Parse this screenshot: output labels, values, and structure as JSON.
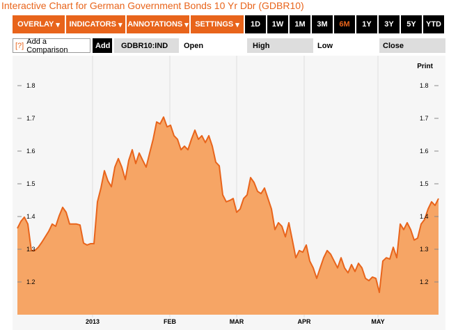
{
  "header": {
    "title": "Interactive Chart for German Government Bonds 10 Yr Dbr (GDBR10)"
  },
  "toolbar": {
    "menus": [
      "OVERLAY",
      "INDICATORS",
      "ANNOTATIONS",
      "SETTINGS"
    ],
    "ranges": [
      "1D",
      "1W",
      "1M",
      "3M",
      "6M",
      "1Y",
      "3Y",
      "5Y",
      "YTD"
    ],
    "selected_range": 4
  },
  "comparison": {
    "help": "[?]",
    "placeholder": "Add a Comparison",
    "button": "Add",
    "symbol": "GDBR10:IND",
    "fields": [
      "Open",
      "High",
      "Low",
      "Close"
    ]
  },
  "chart_data": {
    "type": "area",
    "print_label": "Print",
    "color": "#e8641b",
    "fill": "#f6a565",
    "values": [
      1.364,
      1.385,
      1.398,
      1.377,
      1.296,
      1.296,
      1.306,
      1.321,
      1.338,
      1.355,
      1.377,
      1.37,
      1.402,
      1.428,
      1.413,
      1.377,
      1.377,
      1.377,
      1.374,
      1.319,
      1.313,
      1.317,
      1.317,
      1.445,
      1.487,
      1.54,
      1.509,
      1.491,
      1.551,
      1.577,
      1.551,
      1.513,
      1.572,
      1.604,
      1.562,
      1.594,
      1.572,
      1.551,
      1.594,
      1.636,
      1.689,
      1.683,
      1.704,
      1.674,
      1.679,
      1.647,
      1.636,
      1.604,
      1.615,
      1.604,
      1.636,
      1.664,
      1.636,
      1.647,
      1.626,
      1.647,
      1.615,
      1.566,
      1.555,
      1.466,
      1.445,
      1.449,
      1.455,
      1.413,
      1.423,
      1.455,
      1.466,
      1.519,
      1.504,
      1.477,
      1.47,
      1.487,
      1.455,
      1.423,
      1.36,
      1.381,
      1.37,
      1.338,
      1.381,
      1.328,
      1.274,
      1.296,
      1.291,
      1.313,
      1.264,
      1.243,
      1.211,
      1.243,
      1.274,
      1.296,
      1.285,
      1.264,
      1.243,
      1.274,
      1.243,
      1.228,
      1.253,
      1.232,
      1.257,
      1.243,
      1.211,
      1.204,
      1.215,
      1.211,
      1.168,
      1.264,
      1.274,
      1.27,
      1.306,
      1.274,
      1.377,
      1.36,
      1.381,
      1.36,
      1.328,
      1.334,
      1.377,
      1.391,
      1.423,
      1.445,
      1.434,
      1.455
    ],
    "xlim": [
      0,
      121
    ],
    "xticks": [
      {
        "value": 21.6,
        "label": "2013"
      },
      {
        "value": 43.8,
        "label": "FEB"
      },
      {
        "value": 63,
        "label": "MAR"
      },
      {
        "value": 82.4,
        "label": "APR"
      },
      {
        "value": 103.6,
        "label": "MAY"
      }
    ],
    "ylim": [
      1.1,
      1.89
    ],
    "yticks": [
      1.2,
      1.3,
      1.4,
      1.5,
      1.6,
      1.7,
      1.8
    ]
  }
}
